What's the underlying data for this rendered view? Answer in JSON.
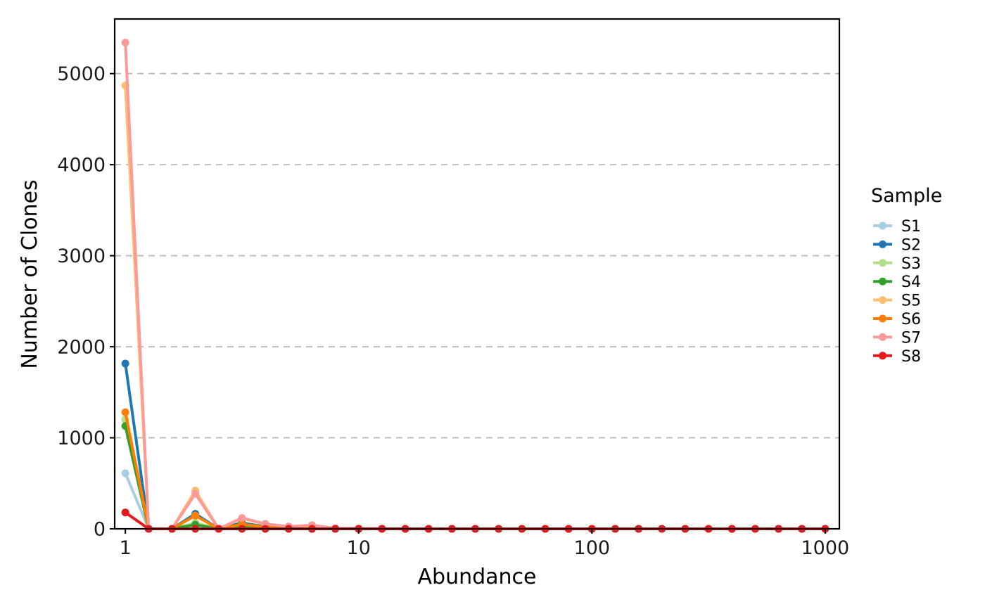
{
  "chart_data": {
    "type": "line",
    "title": "",
    "xlabel": "Abundance",
    "ylabel": "Number of Clones",
    "x_scale": "log10",
    "xlim": [
      0.9,
      1150
    ],
    "ylim": [
      0,
      5600
    ],
    "x_ticks": [
      1,
      10,
      100,
      1000
    ],
    "x_tick_labels": [
      "1",
      "10",
      "100",
      "1000"
    ],
    "y_ticks": [
      0,
      1000,
      2000,
      3000,
      4000,
      5000
    ],
    "y_tick_labels": [
      "0",
      "1000",
      "2000",
      "3000",
      "4000",
      "5000"
    ],
    "grid": "horizontal-dashed",
    "legend": {
      "title": "Sample",
      "placement": "right"
    },
    "x": [
      1,
      1.259,
      1.585,
      1.995,
      2.512,
      3.162,
      3.981,
      5.012,
      6.31,
      7.943,
      10,
      12.59,
      15.85,
      19.95,
      25.12,
      31.62,
      39.81,
      50.12,
      63.1,
      79.43,
      100,
      125.9,
      158.5,
      199.5,
      251.2,
      316.2,
      398.1,
      501.2,
      631,
      794.3,
      1000
    ],
    "series": [
      {
        "name": "S1",
        "color": "#a6cee3",
        "values": [
          610,
          0,
          0,
          35,
          0,
          12,
          0,
          5,
          0,
          0,
          0,
          0,
          0,
          0,
          0,
          0,
          0,
          0,
          0,
          0,
          0,
          0,
          0,
          0,
          0,
          0,
          0,
          0,
          0,
          0,
          0
        ]
      },
      {
        "name": "S2",
        "color": "#1f78b4",
        "values": [
          1815,
          0,
          0,
          165,
          0,
          65,
          22,
          14,
          0,
          0,
          0,
          0,
          0,
          0,
          0,
          0,
          0,
          0,
          0,
          0,
          0,
          0,
          0,
          0,
          0,
          0,
          0,
          0,
          0,
          0,
          0
        ]
      },
      {
        "name": "S3",
        "color": "#b2df8a",
        "values": [
          1200,
          0,
          0,
          65,
          0,
          22,
          10,
          5,
          0,
          0,
          0,
          0,
          0,
          0,
          0,
          0,
          0,
          0,
          0,
          0,
          0,
          0,
          0,
          0,
          0,
          0,
          0,
          0,
          0,
          0,
          0
        ]
      },
      {
        "name": "S4",
        "color": "#33a02c",
        "values": [
          1130,
          0,
          0,
          45,
          0,
          18,
          8,
          4,
          0,
          0,
          0,
          0,
          0,
          0,
          0,
          0,
          0,
          0,
          0,
          0,
          0,
          0,
          0,
          0,
          0,
          0,
          0,
          0,
          0,
          0,
          0
        ]
      },
      {
        "name": "S5",
        "color": "#fdbf6f",
        "values": [
          4870,
          0,
          0,
          420,
          0,
          115,
          50,
          25,
          35,
          5,
          3,
          0,
          0,
          0,
          0,
          0,
          0,
          0,
          0,
          0,
          0,
          0,
          0,
          0,
          0,
          0,
          0,
          0,
          0,
          0,
          0
        ]
      },
      {
        "name": "S6",
        "color": "#ff7f00",
        "values": [
          1280,
          0,
          0,
          145,
          0,
          50,
          20,
          10,
          0,
          0,
          0,
          0,
          0,
          0,
          0,
          0,
          0,
          0,
          0,
          0,
          0,
          0,
          0,
          0,
          0,
          0,
          0,
          0,
          0,
          0,
          0
        ]
      },
      {
        "name": "S7",
        "color": "#fb9a99",
        "values": [
          5340,
          0,
          0,
          385,
          0,
          120,
          55,
          25,
          40,
          6,
          4,
          2,
          0,
          0,
          0,
          0,
          0,
          0,
          0,
          0,
          0,
          0,
          0,
          0,
          0,
          0,
          0,
          0,
          0,
          0,
          0
        ]
      },
      {
        "name": "S8",
        "color": "#e31a1c",
        "values": [
          180,
          0,
          0,
          0,
          0,
          0,
          0,
          0,
          0,
          0,
          0,
          0,
          0,
          0,
          0,
          0,
          0,
          0,
          0,
          0,
          0,
          0,
          0,
          0,
          0,
          0,
          0,
          0,
          0,
          0,
          0
        ]
      }
    ]
  }
}
